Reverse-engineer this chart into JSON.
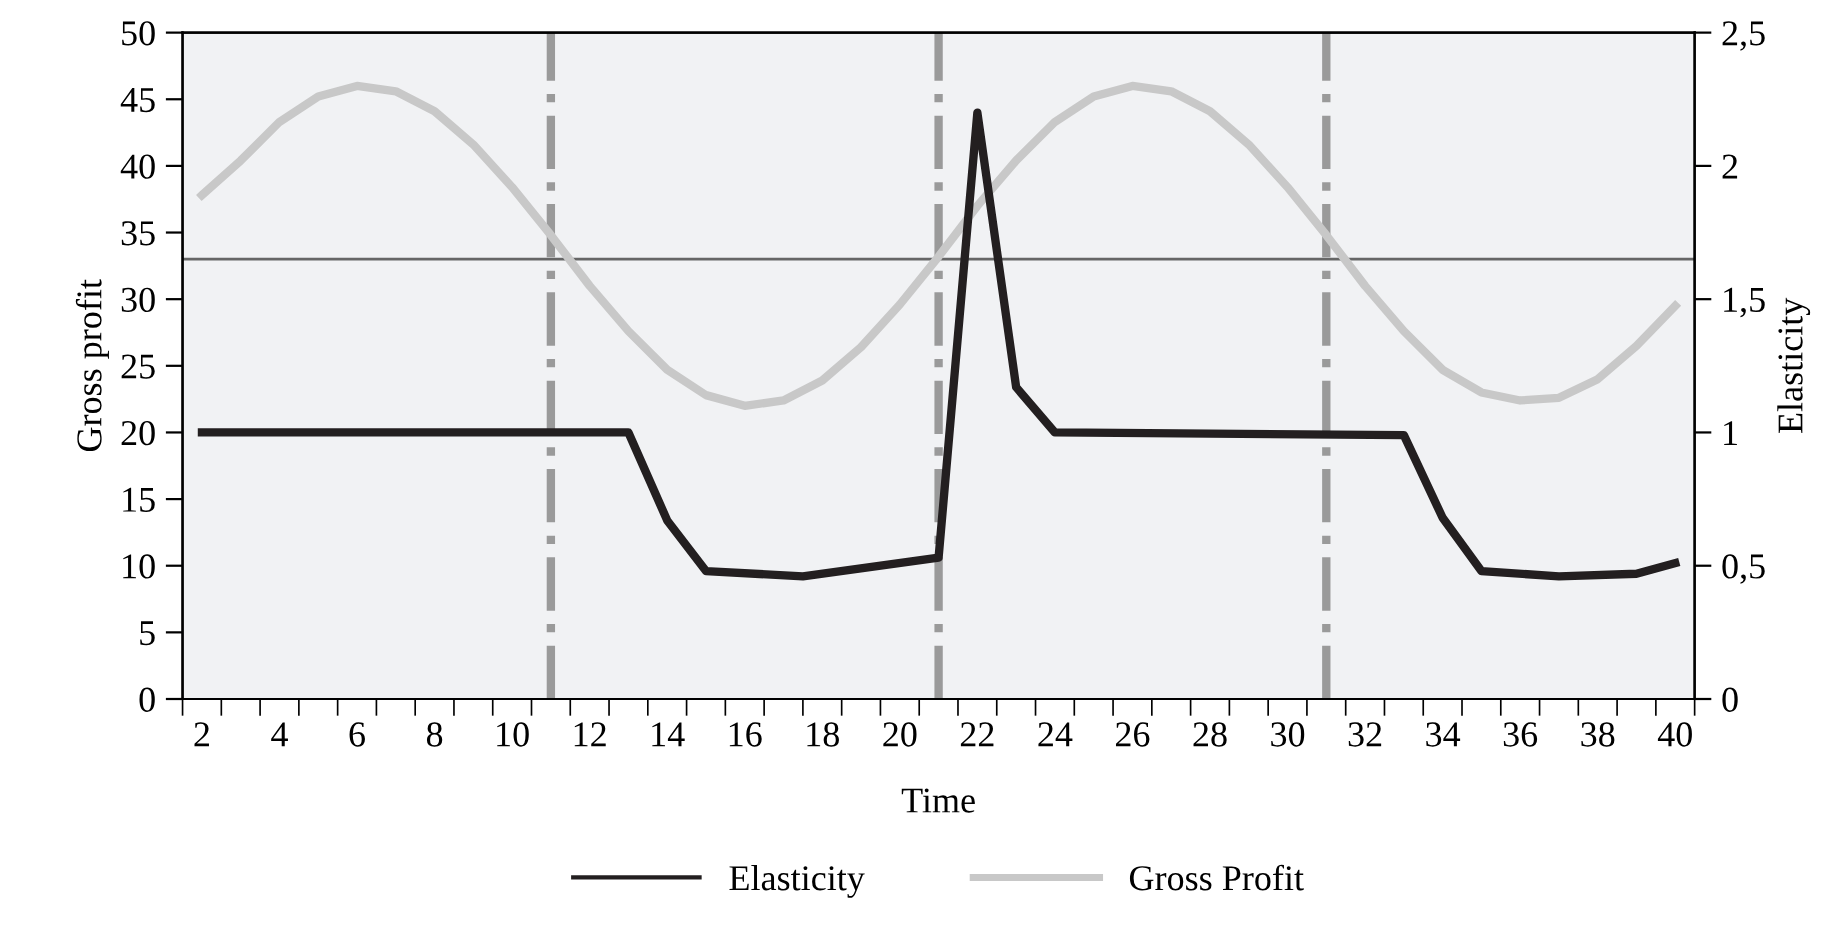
{
  "chart_data": {
    "type": "line",
    "xlabel": "Time",
    "ylabel": "Gross profit",
    "y2label": "Elasticity",
    "xlim": [
      1.5,
      40.5
    ],
    "xticks": [
      {
        "value": 1.5,
        "label": null
      },
      2,
      {
        "value": 2.5,
        "label": null
      },
      {
        "value": 3.5,
        "label": null
      },
      4,
      {
        "value": 4.5,
        "label": null
      },
      {
        "value": 5.5,
        "label": null
      },
      6,
      {
        "value": 6.5,
        "label": null
      },
      {
        "value": 7.5,
        "label": null
      },
      8,
      {
        "value": 8.5,
        "label": null
      },
      {
        "value": 9.5,
        "label": null
      },
      10,
      {
        "value": 10.5,
        "label": null
      },
      {
        "value": 11.5,
        "label": null
      },
      12,
      {
        "value": 12.5,
        "label": null
      },
      {
        "value": 13.5,
        "label": null
      },
      14,
      {
        "value": 14.5,
        "label": null
      },
      {
        "value": 15.5,
        "label": null
      },
      16,
      {
        "value": 16.5,
        "label": null
      },
      {
        "value": 17.5,
        "label": null
      },
      18,
      {
        "value": 18.5,
        "label": null
      },
      {
        "value": 19.5,
        "label": null
      },
      20,
      {
        "value": 20.5,
        "label": null
      },
      {
        "value": 21.5,
        "label": null
      },
      22,
      {
        "value": 22.5,
        "label": null
      },
      {
        "value": 23.5,
        "label": null
      },
      24,
      {
        "value": 24.5,
        "label": null
      },
      {
        "value": 25.5,
        "label": null
      },
      26,
      {
        "value": 26.5,
        "label": null
      },
      {
        "value": 27.5,
        "label": null
      },
      28,
      {
        "value": 28.5,
        "label": null
      },
      {
        "value": 29.5,
        "label": null
      },
      30,
      {
        "value": 30.5,
        "label": null
      },
      {
        "value": 31.5,
        "label": null
      },
      32,
      {
        "value": 32.5,
        "label": null
      },
      {
        "value": 33.5,
        "label": null
      },
      34,
      {
        "value": 34.5,
        "label": null
      },
      {
        "value": 35.5,
        "label": null
      },
      36,
      {
        "value": 36.5,
        "label": null
      },
      {
        "value": 37.5,
        "label": null
      },
      38,
      {
        "value": 38.5,
        "label": null
      },
      {
        "value": 39.5,
        "label": null
      },
      40,
      {
        "value": 40.5,
        "label": null
      }
    ],
    "ylim": [
      0,
      50
    ],
    "yticks": [
      0,
      5,
      10,
      15,
      20,
      25,
      30,
      35,
      40,
      45,
      50
    ],
    "y2lim": [
      0,
      2.5
    ],
    "y2ticks": [
      0,
      {
        "value": 0.5,
        "label": "0,5"
      },
      1,
      {
        "value": 1.5,
        "label": "1,5"
      },
      2,
      {
        "value": 2.5,
        "label": "2,5"
      }
    ],
    "series": [
      {
        "name": "Elasticity",
        "color": "#231f20",
        "axis": "y2",
        "x": [
          2,
          13,
          14,
          15,
          17.5,
          21,
          22,
          23,
          24,
          33,
          34,
          35,
          37,
          39,
          40
        ],
        "values": [
          1.0,
          1.0,
          0.67,
          0.48,
          0.46,
          0.53,
          2.2,
          1.17,
          1.0,
          0.99,
          0.68,
          0.48,
          0.46,
          0.47,
          0.51
        ]
      },
      {
        "name": "Gross Profit",
        "color": "#c8c8c8",
        "axis": "y",
        "x": [
          2,
          3,
          4,
          5,
          6,
          7,
          8,
          9,
          10,
          11,
          12,
          13,
          14,
          15,
          16,
          17,
          18,
          19,
          20,
          21,
          22,
          23,
          24,
          25,
          26,
          27,
          28,
          29,
          30,
          31,
          32,
          33,
          34,
          35,
          36,
          37,
          38,
          39,
          40
        ],
        "values": [
          37.8,
          40.4,
          43.3,
          45.2,
          46.0,
          45.6,
          44.1,
          41.6,
          38.4,
          34.8,
          31.0,
          27.6,
          24.7,
          22.8,
          22.0,
          22.4,
          23.9,
          26.4,
          29.6,
          33.2,
          37.0,
          40.4,
          43.3,
          45.2,
          46.0,
          45.6,
          44.1,
          41.6,
          38.4,
          34.8,
          31.0,
          27.6,
          24.7,
          23.0,
          22.4,
          22.6,
          24.0,
          26.5,
          29.5
        ]
      }
    ],
    "ref_lines": [
      {
        "axis": "x",
        "value": 11,
        "label": null,
        "color": "#9a9a9a",
        "line_style": "dashdot"
      },
      {
        "axis": "x",
        "value": 21,
        "label": null,
        "color": "#9a9a9a",
        "line_style": "dashdot"
      },
      {
        "axis": "x",
        "value": 31,
        "label": null,
        "color": "#9a9a9a",
        "line_style": "dashdot"
      },
      {
        "axis": "y",
        "value": 33,
        "label": null,
        "color": "#666666",
        "line_style": "solid"
      }
    ],
    "grid": false,
    "legend": "bottom",
    "marker": "none",
    "line_style": "solid"
  }
}
